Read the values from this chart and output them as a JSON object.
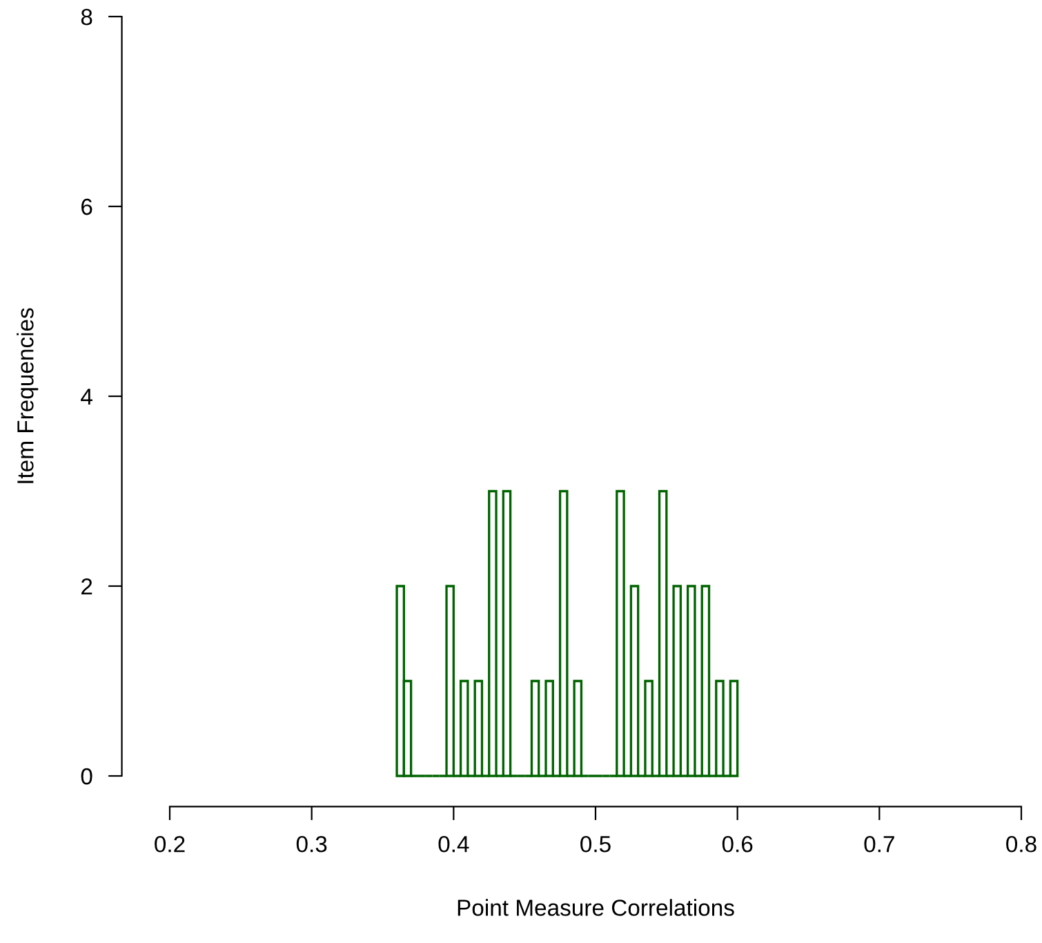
{
  "chart_data": {
    "type": "histogram",
    "xlabel": "Point Measure Correlations",
    "ylabel": "Item Frequencies",
    "bins": [
      0.36,
      0.365,
      0.37,
      0.375,
      0.38,
      0.385,
      0.39,
      0.395,
      0.4,
      0.405,
      0.41,
      0.415,
      0.42,
      0.425,
      0.43,
      0.435,
      0.44,
      0.445,
      0.45,
      0.455,
      0.46,
      0.465,
      0.47,
      0.475,
      0.48,
      0.485,
      0.49,
      0.495,
      0.5,
      0.505,
      0.51,
      0.515,
      0.52,
      0.525,
      0.53,
      0.535,
      0.54,
      0.545,
      0.55,
      0.555,
      0.56,
      0.565,
      0.57,
      0.575,
      0.58,
      0.585,
      0.59,
      0.595,
      0.6
    ],
    "values": [
      2,
      1,
      0,
      0,
      0,
      0,
      0,
      2,
      0,
      1,
      0,
      1,
      0,
      3,
      0,
      3,
      0,
      0,
      0,
      1,
      0,
      1,
      0,
      3,
      0,
      1,
      0,
      0,
      0,
      0,
      0,
      3,
      0,
      2,
      0,
      1,
      0,
      3,
      0,
      2,
      0,
      2,
      0,
      2,
      0,
      1,
      0,
      1
    ],
    "color": "#006400",
    "xlim": [
      0.2,
      0.8
    ],
    "xticks": [
      0.2,
      0.3,
      0.4,
      0.5,
      0.6,
      0.7,
      0.8
    ],
    "ylim": [
      0,
      8
    ],
    "yticks": [
      0,
      2,
      4,
      6,
      8
    ],
    "grid": false,
    "legend": false
  }
}
